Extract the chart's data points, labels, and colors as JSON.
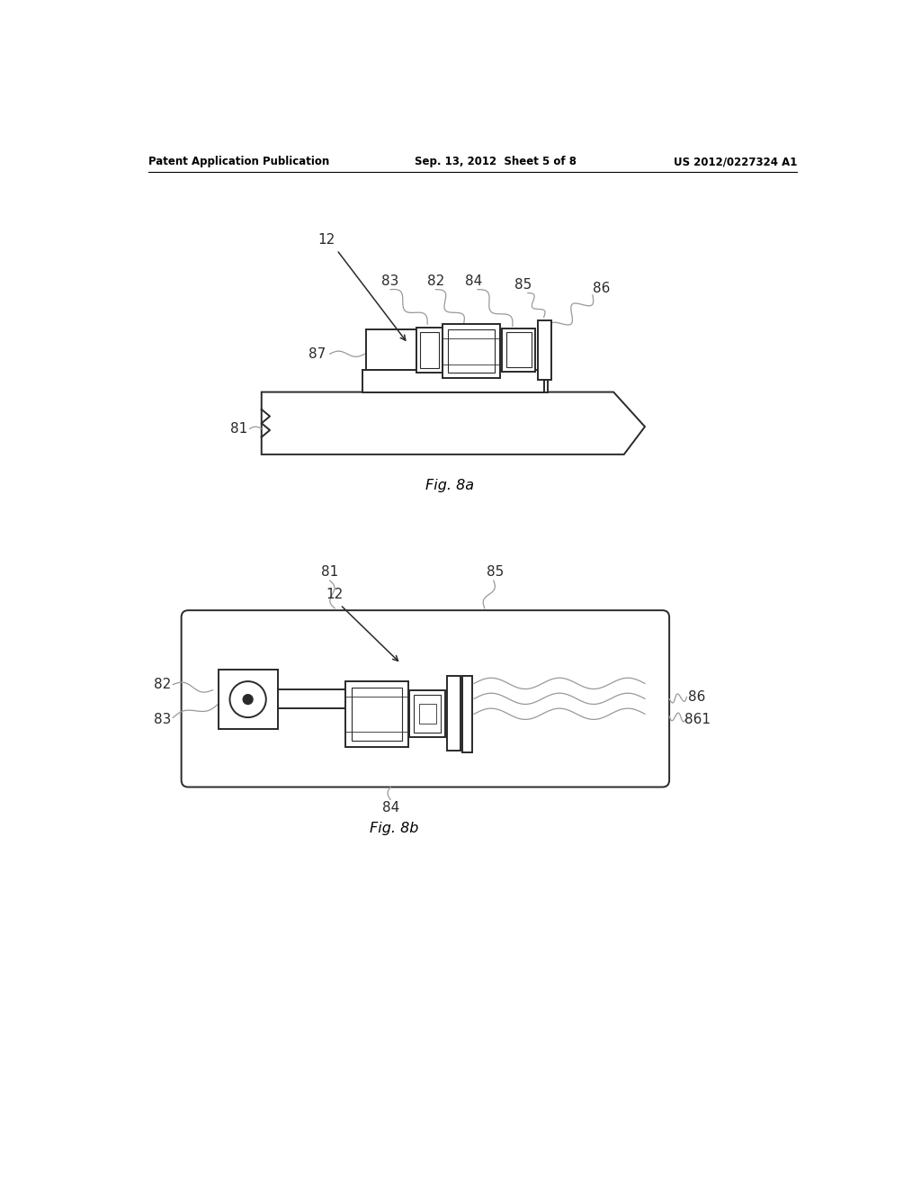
{
  "bg_color": "#ffffff",
  "header_left": "Patent Application Publication",
  "header_mid": "Sep. 13, 2012  Sheet 5 of 8",
  "header_right": "US 2012/0227324 A1",
  "fig8a_label": "Fig. 8a",
  "fig8b_label": "Fig. 8b",
  "line_color": "#2a2a2a",
  "leader_color": "#999999",
  "label_color": "#2a2a2a"
}
